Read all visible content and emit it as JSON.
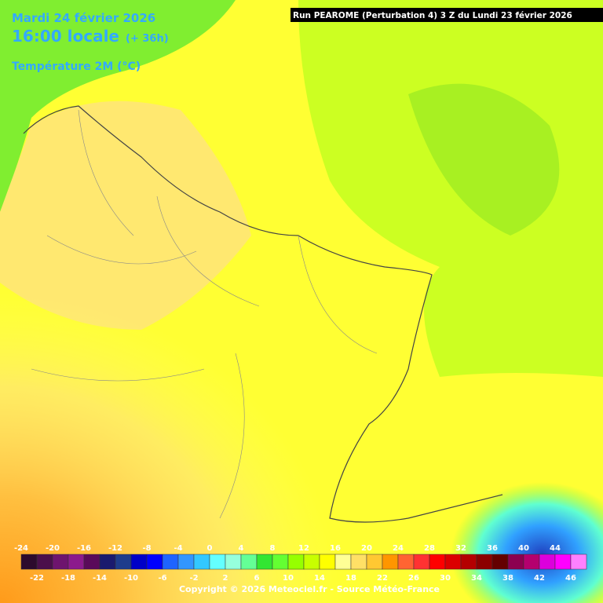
{
  "header": {
    "date": "Mardi 24 février 2026",
    "time": "16:00 locale",
    "lead": "(+ 36h)",
    "variable": "Température 2M (°C)",
    "run": "Run PEAROME (Perturbation 4) 3 Z du Lundi 23 février 2026"
  },
  "legend": {
    "values": [
      -24,
      -22,
      -20,
      -18,
      -16,
      -14,
      -12,
      -10,
      -8,
      -6,
      -4,
      -2,
      0,
      2,
      4,
      6,
      8,
      10,
      12,
      14,
      16,
      18,
      20,
      22,
      24,
      26,
      28,
      30,
      32,
      34,
      36,
      38,
      40,
      42,
      44,
      46
    ],
    "colors": [
      "#2d0a2d",
      "#4b0f4b",
      "#6e146e",
      "#8c1a8c",
      "#5a0a5a",
      "#1a1a6e",
      "#1e3c8c",
      "#0000c8",
      "#0000ff",
      "#1e64ff",
      "#3296ff",
      "#32c8ff",
      "#64ffff",
      "#96ffdc",
      "#64ff96",
      "#32e632",
      "#64ff32",
      "#96ff00",
      "#c8ff00",
      "#ffff00",
      "#ffff96",
      "#ffe066",
      "#ffc832",
      "#ff9600",
      "#ff6432",
      "#ff3232",
      "#ff0000",
      "#dc0000",
      "#b40000",
      "#8c0000",
      "#640000",
      "#8c0050",
      "#b4006e",
      "#dc00dc",
      "#ff00ff",
      "#ff80ff"
    ]
  },
  "footer": {
    "copyright": "Copyright © 2026 Meteociel.fr - Source Météo-France"
  }
}
